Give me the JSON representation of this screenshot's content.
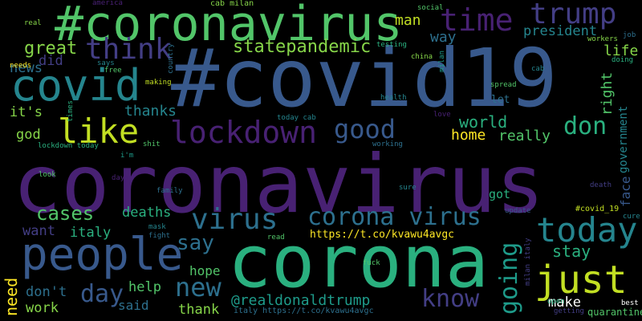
{
  "palette": {
    "background": "#000000",
    "dark_purple": "#482173",
    "purple": "#433e85",
    "blue": "#38598c",
    "steel": "#2d708e",
    "teal": "#25858e",
    "teal_green": "#1e9b8a",
    "green": "#2ab07f",
    "light_green": "#52c569",
    "lime": "#86d549",
    "yellow_green": "#c2df23",
    "yellow": "#fde725"
  },
  "words": [
    "#covid19",
    "coronavirus",
    "corona",
    "#coronavirus",
    "covid",
    "people",
    "trump",
    "time",
    "like",
    "think",
    "lockdown",
    "just",
    "virus",
    "today",
    "good",
    "corona virus",
    "don",
    "news",
    "great",
    "did",
    "it's",
    "god",
    "thanks",
    "statepandemic",
    "way",
    "president",
    "life",
    "right",
    "government",
    "face",
    "world",
    "home",
    "really",
    "man",
    "cases",
    "deaths",
    "want",
    "italy",
    "say",
    "going",
    "stay",
    "know",
    "need",
    "don't",
    "help",
    "day",
    "new",
    "hope",
    "work",
    "said",
    "thank",
    "@realdonaldtrump",
    "make",
    "https://t.co/kvawu4avgc",
    "got",
    "let",
    "spread",
    "china",
    "health",
    "love",
    "today cab",
    "shit",
    "lockdown today",
    "working",
    "i'm",
    "look",
    "days",
    "sure",
    "family",
    "mask",
    "fight",
    "read",
    "fuck",
    "death",
    "update",
    "#covid_19",
    "cure",
    "italy https://t.co/kvawu4avgc",
    "quarantine",
    "getting",
    "best",
    "open",
    "milan italy",
    "america",
    "cab milan",
    "social",
    "real",
    "needs",
    "says",
    "free",
    "making",
    "country",
    "testing",
    "milan",
    "cab",
    "workers",
    "job",
    "doing",
    "times"
  ]
}
